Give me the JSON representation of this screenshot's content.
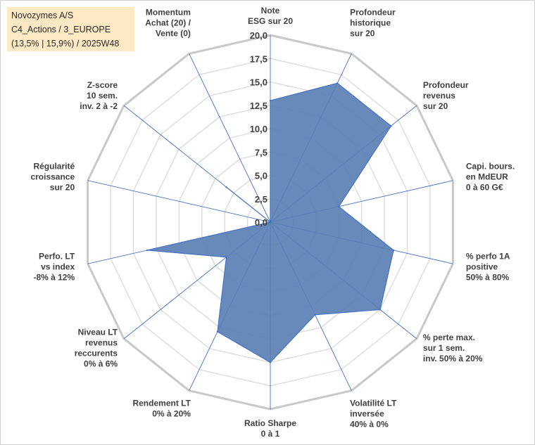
{
  "title_box": {
    "line1": "Novozymes A/S",
    "line2": "C4_Actions / 3_EUROPE",
    "line3": "(13,5% | 15,9%) / 2025W48"
  },
  "colors": {
    "fill": "#5b80b5",
    "stroke": "#4472c4",
    "grid": "#d9d9d9",
    "spoke": "#4472c4",
    "title_bg": "#fdeac4"
  },
  "chart_data": {
    "type": "radar",
    "title": "",
    "rmin": 0,
    "rmax": 20,
    "ticks": [
      "0,0",
      "2,5",
      "5,0",
      "7,5",
      "10,0",
      "12,5",
      "15,0",
      "17,5",
      "20,0"
    ],
    "categories": [
      "Note\nESG sur 20",
      "Profondeur\nhistorique\nsur 20",
      "Profondeur\nrevenus\nsur 20",
      "Capi. bours.\nen MdEUR\n0 à 60 G€",
      "% perfo 1A\npositive\n50% à 80%",
      "% perte max.\nsur 1 sem.\ninv. 50% à 20%",
      "Volatilité LT\ninversée\n40% à 0%",
      "Ratio Sharpe\n0 à 1",
      "Rendement LT\n0% à 20%",
      "Niveau LT\nrevenus\nreccurents\n0% à 6%",
      "Perfo. LT\nvs index\n-8% à 12%",
      "Régularité\ncroissance\nsur 20",
      "Z-score\n10 sem.\ninv. 2 à -2",
      "Momentum\nAchat (20) /\nVente (0)"
    ],
    "series": [
      {
        "values": [
          13,
          16.5,
          16.5,
          7.5,
          13.5,
          15,
          11,
          15,
          13,
          6,
          13.5,
          0,
          6,
          0
        ]
      }
    ]
  }
}
